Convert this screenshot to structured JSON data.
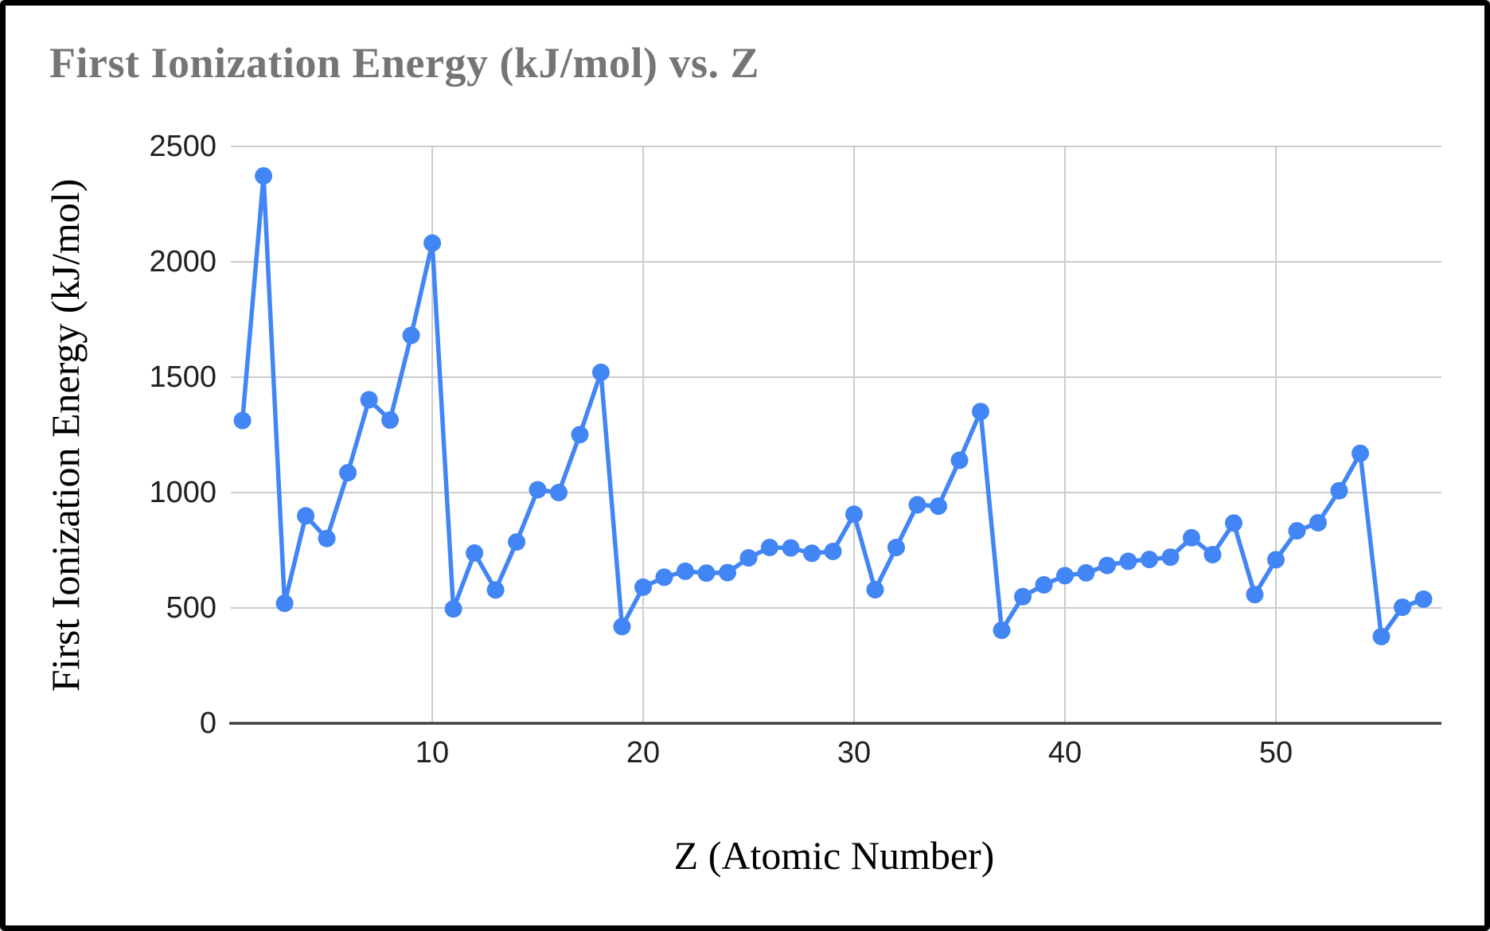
{
  "window": {
    "background_color": "#ffffff",
    "border_color": "#000000"
  },
  "chart": {
    "title": "First Ionization Energy (kJ/mol) vs. Z",
    "title_color": "#757575",
    "xlabel": "Z (Atomic Number)",
    "ylabel": "First Ionization Energy (kJ/mol)",
    "axis_title_color": "#000000",
    "tick_label_color": "#212121"
  },
  "chart_data": {
    "type": "line",
    "title": "First Ionization Energy (kJ/mol) vs. Z",
    "xlabel": "Z (Atomic Number)",
    "ylabel": "First Ionization Energy (kJ/mol)",
    "x": [
      1,
      2,
      3,
      4,
      5,
      6,
      7,
      8,
      9,
      10,
      11,
      12,
      13,
      14,
      15,
      16,
      17,
      18,
      19,
      20,
      21,
      22,
      23,
      24,
      25,
      26,
      27,
      28,
      29,
      30,
      31,
      32,
      33,
      34,
      35,
      36,
      37,
      38,
      39,
      40,
      41,
      42,
      43,
      44,
      45,
      46,
      47,
      48,
      49,
      50,
      51,
      52,
      53,
      54,
      55,
      56,
      57
    ],
    "values": [
      1312,
      2372,
      520,
      899,
      801,
      1086,
      1402,
      1314,
      1681,
      2081,
      496,
      738,
      578,
      786,
      1012,
      1000,
      1251,
      1521,
      419,
      590,
      633,
      659,
      651,
      653,
      717,
      762,
      760,
      737,
      745,
      906,
      579,
      762,
      947,
      941,
      1140,
      1351,
      403,
      549,
      600,
      640,
      652,
      684,
      702,
      710,
      720,
      804,
      731,
      868,
      558,
      709,
      834,
      869,
      1008,
      1170,
      376,
      503,
      538
    ],
    "xlim": [
      0.45,
      57.85
    ],
    "ylim": [
      0,
      2500
    ],
    "xticks": [
      10,
      20,
      30,
      40,
      50
    ],
    "yticks": [
      0,
      500,
      1000,
      1500,
      2000,
      2500
    ],
    "grid": true,
    "legend": "none",
    "line_color": "#4285F4",
    "gridline_color": "#cccccc",
    "axis_line_color": "#424242",
    "line_width": 5.5,
    "marker_radius": 11
  }
}
